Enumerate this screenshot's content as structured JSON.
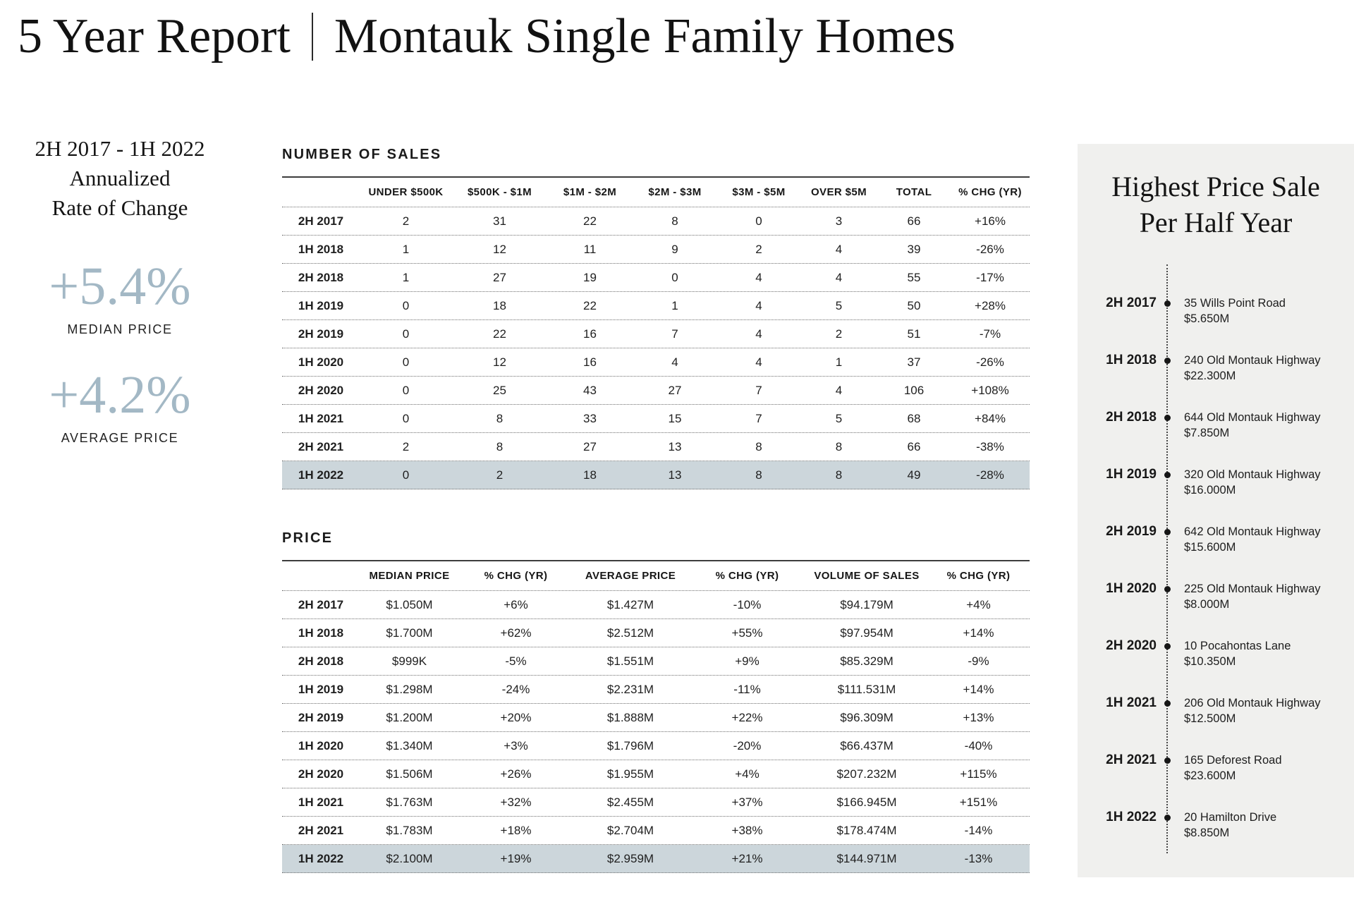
{
  "header": {
    "title_left": "5 Year Report",
    "title_right": "Montauk Single Family Homes"
  },
  "left_stats": {
    "period_lines": [
      "2H 2017 - 1H 2022",
      "Annualized",
      "Rate of Change"
    ],
    "stats": [
      {
        "value": "+5.4%",
        "label": "MEDIAN PRICE"
      },
      {
        "value": "+4.2%",
        "label": "AVERAGE PRICE"
      }
    ],
    "accent_color": "#a3b8c5"
  },
  "tables": {
    "highlight_color": "#ccd6db",
    "sales": {
      "title": "NUMBER OF SALES",
      "columns": [
        "UNDER $500K",
        "$500K - $1M",
        "$1M - $2M",
        "$2M - $3M",
        "$3M - $5M",
        "OVER $5M",
        "TOTAL",
        "% CHG (YR)"
      ],
      "highlighted_period": "1H 2022",
      "rows": [
        {
          "period": "2H 2017",
          "values": [
            "2",
            "31",
            "22",
            "8",
            "0",
            "3",
            "66",
            "+16%"
          ]
        },
        {
          "period": "1H 2018",
          "values": [
            "1",
            "12",
            "11",
            "9",
            "2",
            "4",
            "39",
            "-26%"
          ]
        },
        {
          "period": "2H 2018",
          "values": [
            "1",
            "27",
            "19",
            "0",
            "4",
            "4",
            "55",
            "-17%"
          ]
        },
        {
          "period": "1H 2019",
          "values": [
            "0",
            "18",
            "22",
            "1",
            "4",
            "5",
            "50",
            "+28%"
          ]
        },
        {
          "period": "2H 2019",
          "values": [
            "0",
            "22",
            "16",
            "7",
            "4",
            "2",
            "51",
            "-7%"
          ]
        },
        {
          "period": "1H 2020",
          "values": [
            "0",
            "12",
            "16",
            "4",
            "4",
            "1",
            "37",
            "-26%"
          ]
        },
        {
          "period": "2H 2020",
          "values": [
            "0",
            "25",
            "43",
            "27",
            "7",
            "4",
            "106",
            "+108%"
          ]
        },
        {
          "period": "1H 2021",
          "values": [
            "0",
            "8",
            "33",
            "15",
            "7",
            "5",
            "68",
            "+84%"
          ]
        },
        {
          "period": "2H 2021",
          "values": [
            "2",
            "8",
            "27",
            "13",
            "8",
            "8",
            "66",
            "-38%"
          ]
        },
        {
          "period": "1H 2022",
          "values": [
            "0",
            "2",
            "18",
            "13",
            "8",
            "8",
            "49",
            "-28%"
          ]
        }
      ]
    },
    "price": {
      "title": "PRICE",
      "columns": [
        "MEDIAN PRICE",
        "% CHG (YR)",
        "AVERAGE PRICE",
        "% CHG (YR)",
        "VOLUME OF SALES",
        "% CHG (YR)"
      ],
      "highlighted_period": "1H 2022",
      "rows": [
        {
          "period": "2H 2017",
          "values": [
            "$1.050M",
            "+6%",
            "$1.427M",
            "-10%",
            "$94.179M",
            "+4%"
          ]
        },
        {
          "period": "1H 2018",
          "values": [
            "$1.700M",
            "+62%",
            "$2.512M",
            "+55%",
            "$97.954M",
            "+14%"
          ]
        },
        {
          "period": "2H 2018",
          "values": [
            "$999K",
            "-5%",
            "$1.551M",
            "+9%",
            "$85.329M",
            "-9%"
          ]
        },
        {
          "period": "1H 2019",
          "values": [
            "$1.298M",
            "-24%",
            "$2.231M",
            "-11%",
            "$111.531M",
            "+14%"
          ]
        },
        {
          "period": "2H 2019",
          "values": [
            "$1.200M",
            "+20%",
            "$1.888M",
            "+22%",
            "$96.309M",
            "+13%"
          ]
        },
        {
          "period": "1H 2020",
          "values": [
            "$1.340M",
            "+3%",
            "$1.796M",
            "-20%",
            "$66.437M",
            "-40%"
          ]
        },
        {
          "period": "2H 2020",
          "values": [
            "$1.506M",
            "+26%",
            "$1.955M",
            "+4%",
            "$207.232M",
            "+115%"
          ]
        },
        {
          "period": "1H 2021",
          "values": [
            "$1.763M",
            "+32%",
            "$2.455M",
            "+37%",
            "$166.945M",
            "+151%"
          ]
        },
        {
          "period": "2H 2021",
          "values": [
            "$1.783M",
            "+18%",
            "$2.704M",
            "+38%",
            "$178.474M",
            "-14%"
          ]
        },
        {
          "period": "1H 2022",
          "values": [
            "$2.100M",
            "+19%",
            "$2.959M",
            "+21%",
            "$144.971M",
            "-13%"
          ]
        }
      ]
    }
  },
  "highest_price_panel": {
    "title_lines": [
      "Highest Price Sale",
      "Per Half Year"
    ],
    "background": "#f0f0ee",
    "entries": [
      {
        "period": "2H 2017",
        "address": "35 Wills Point Road",
        "price": "$5.650M"
      },
      {
        "period": "1H 2018",
        "address": "240 Old Montauk Highway",
        "price": "$22.300M"
      },
      {
        "period": "2H 2018",
        "address": "644 Old Montauk Highway",
        "price": "$7.850M"
      },
      {
        "period": "1H 2019",
        "address": "320 Old Montauk Highway",
        "price": "$16.000M"
      },
      {
        "period": "2H 2019",
        "address": "642 Old Montauk Highway",
        "price": "$15.600M"
      },
      {
        "period": "1H 2020",
        "address": "225 Old Montauk Highway",
        "price": "$8.000M"
      },
      {
        "period": "2H 2020",
        "address": "10 Pocahontas Lane",
        "price": "$10.350M"
      },
      {
        "period": "1H 2021",
        "address": "206 Old Montauk Highway",
        "price": "$12.500M"
      },
      {
        "period": "2H 2021",
        "address": "165 Deforest Road",
        "price": "$23.600M"
      },
      {
        "period": "1H 2022",
        "address": "20 Hamilton Drive",
        "price": "$8.850M"
      }
    ]
  }
}
